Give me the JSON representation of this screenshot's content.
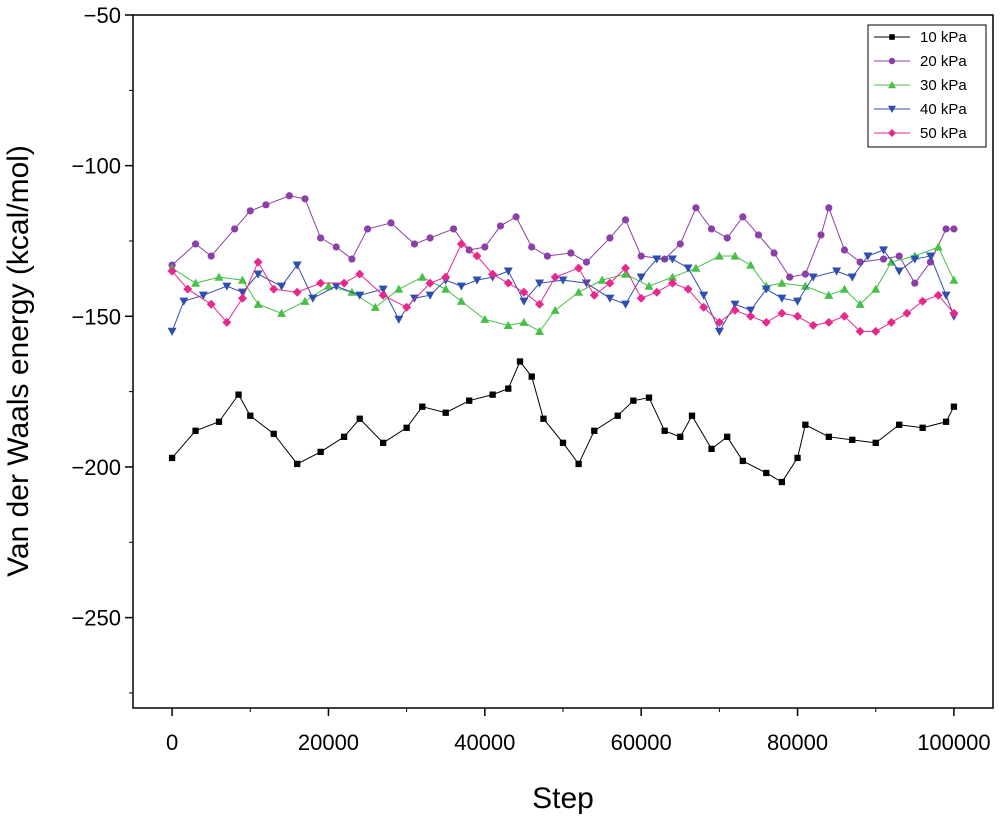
{
  "chart_data": {
    "type": "line",
    "title": "",
    "xlabel": "Step",
    "ylabel": "Van der Waals energy (kcal/mol)",
    "xlim": [
      -5000,
      105000
    ],
    "ylim": [
      -280,
      -50
    ],
    "xticks": [
      0,
      20000,
      40000,
      60000,
      80000,
      100000
    ],
    "xtick_labels": [
      "0",
      "20000",
      "40000",
      "60000",
      "80000",
      "100000"
    ],
    "yticks": [
      -50,
      -100,
      -150,
      -200,
      -250
    ],
    "ytick_labels": [
      "−50",
      "−100",
      "−150",
      "−200",
      "−250"
    ],
    "grid": false,
    "legend_position": "top-right",
    "series": [
      {
        "name": "10 kPa",
        "marker": "square",
        "color": "#000000",
        "points": [
          [
            0,
            -197
          ],
          [
            3000,
            -188
          ],
          [
            6000,
            -185
          ],
          [
            8500,
            -176
          ],
          [
            10000,
            -183
          ],
          [
            13000,
            -189
          ],
          [
            16000,
            -199
          ],
          [
            19000,
            -195
          ],
          [
            22000,
            -190
          ],
          [
            24000,
            -184
          ],
          [
            27000,
            -192
          ],
          [
            30000,
            -187
          ],
          [
            32000,
            -180
          ],
          [
            35000,
            -182
          ],
          [
            38000,
            -178
          ],
          [
            41000,
            -176
          ],
          [
            43000,
            -174
          ],
          [
            44500,
            -165
          ],
          [
            46000,
            -170
          ],
          [
            47500,
            -184
          ],
          [
            50000,
            -192
          ],
          [
            52000,
            -199
          ],
          [
            54000,
            -188
          ],
          [
            57000,
            -183
          ],
          [
            59000,
            -178
          ],
          [
            61000,
            -177
          ],
          [
            63000,
            -188
          ],
          [
            65000,
            -190
          ],
          [
            66500,
            -183
          ],
          [
            69000,
            -194
          ],
          [
            71000,
            -190
          ],
          [
            73000,
            -198
          ],
          [
            76000,
            -202
          ],
          [
            78000,
            -205
          ],
          [
            80000,
            -197
          ],
          [
            81000,
            -186
          ],
          [
            84000,
            -190
          ],
          [
            87000,
            -191
          ],
          [
            90000,
            -192
          ],
          [
            93000,
            -186
          ],
          [
            96000,
            -187
          ],
          [
            99000,
            -185
          ],
          [
            100000,
            -180
          ]
        ]
      },
      {
        "name": "20 kPa",
        "marker": "circle",
        "color": "#8b3fa8",
        "points": [
          [
            0,
            -133
          ],
          [
            3000,
            -126
          ],
          [
            5000,
            -130
          ],
          [
            8000,
            -121
          ],
          [
            10000,
            -115
          ],
          [
            12000,
            -113
          ],
          [
            15000,
            -110
          ],
          [
            17000,
            -111
          ],
          [
            19000,
            -124
          ],
          [
            21000,
            -127
          ],
          [
            23000,
            -131
          ],
          [
            25000,
            -121
          ],
          [
            28000,
            -119
          ],
          [
            31000,
            -126
          ],
          [
            33000,
            -124
          ],
          [
            36000,
            -121
          ],
          [
            38000,
            -128
          ],
          [
            40000,
            -127
          ],
          [
            42000,
            -120
          ],
          [
            44000,
            -117
          ],
          [
            46000,
            -127
          ],
          [
            48000,
            -130
          ],
          [
            51000,
            -129
          ],
          [
            53000,
            -132
          ],
          [
            56000,
            -124
          ],
          [
            58000,
            -118
          ],
          [
            60000,
            -130
          ],
          [
            63000,
            -131
          ],
          [
            65000,
            -126
          ],
          [
            67000,
            -114
          ],
          [
            69000,
            -121
          ],
          [
            71000,
            -124
          ],
          [
            73000,
            -117
          ],
          [
            75000,
            -123
          ],
          [
            77000,
            -129
          ],
          [
            79000,
            -137
          ],
          [
            81000,
            -136
          ],
          [
            83000,
            -123
          ],
          [
            84000,
            -114
          ],
          [
            86000,
            -128
          ],
          [
            88000,
            -132
          ],
          [
            91000,
            -131
          ],
          [
            93000,
            -130
          ],
          [
            95000,
            -139
          ],
          [
            97000,
            -132
          ],
          [
            99000,
            -121
          ],
          [
            100000,
            -121
          ]
        ]
      },
      {
        "name": "30 kPa",
        "marker": "triangle-up",
        "color": "#48c048",
        "points": [
          [
            0,
            -134
          ],
          [
            3000,
            -139
          ],
          [
            6000,
            -137
          ],
          [
            9000,
            -138
          ],
          [
            11000,
            -146
          ],
          [
            14000,
            -149
          ],
          [
            17000,
            -145
          ],
          [
            20000,
            -140
          ],
          [
            23000,
            -142
          ],
          [
            26000,
            -147
          ],
          [
            29000,
            -141
          ],
          [
            32000,
            -137
          ],
          [
            35000,
            -141
          ],
          [
            37000,
            -145
          ],
          [
            40000,
            -151
          ],
          [
            43000,
            -153
          ],
          [
            45000,
            -152
          ],
          [
            47000,
            -155
          ],
          [
            49000,
            -148
          ],
          [
            52000,
            -142
          ],
          [
            55000,
            -138
          ],
          [
            58000,
            -136
          ],
          [
            61000,
            -140
          ],
          [
            64000,
            -137
          ],
          [
            67000,
            -134
          ],
          [
            70000,
            -130
          ],
          [
            72000,
            -130
          ],
          [
            74000,
            -133
          ],
          [
            76000,
            -140
          ],
          [
            78000,
            -139
          ],
          [
            81000,
            -140
          ],
          [
            84000,
            -143
          ],
          [
            86000,
            -141
          ],
          [
            88000,
            -146
          ],
          [
            90000,
            -141
          ],
          [
            92000,
            -132
          ],
          [
            95000,
            -130
          ],
          [
            98000,
            -127
          ],
          [
            100000,
            -138
          ]
        ]
      },
      {
        "name": "40 kPa",
        "marker": "triangle-down",
        "color": "#2f4fb0",
        "points": [
          [
            0,
            -155
          ],
          [
            1500,
            -145
          ],
          [
            4000,
            -143
          ],
          [
            7000,
            -140
          ],
          [
            9000,
            -142
          ],
          [
            11000,
            -136
          ],
          [
            14000,
            -140
          ],
          [
            16000,
            -133
          ],
          [
            18000,
            -144
          ],
          [
            21000,
            -140
          ],
          [
            24000,
            -143
          ],
          [
            27000,
            -141
          ],
          [
            29000,
            -151
          ],
          [
            31000,
            -144
          ],
          [
            33000,
            -143
          ],
          [
            35000,
            -138
          ],
          [
            37000,
            -140
          ],
          [
            39000,
            -138
          ],
          [
            41000,
            -137
          ],
          [
            43000,
            -135
          ],
          [
            45000,
            -145
          ],
          [
            47000,
            -139
          ],
          [
            50000,
            -138
          ],
          [
            53000,
            -139
          ],
          [
            56000,
            -144
          ],
          [
            58000,
            -146
          ],
          [
            60000,
            -137
          ],
          [
            62000,
            -131
          ],
          [
            64000,
            -131
          ],
          [
            66000,
            -134
          ],
          [
            68000,
            -143
          ],
          [
            70000,
            -155
          ],
          [
            72000,
            -146
          ],
          [
            74000,
            -148
          ],
          [
            76000,
            -141
          ],
          [
            78000,
            -144
          ],
          [
            80000,
            -145
          ],
          [
            82000,
            -137
          ],
          [
            85000,
            -135
          ],
          [
            87000,
            -137
          ],
          [
            89000,
            -130
          ],
          [
            91000,
            -128
          ],
          [
            93000,
            -135
          ],
          [
            95000,
            -131
          ],
          [
            97000,
            -130
          ],
          [
            99000,
            -143
          ],
          [
            100000,
            -150
          ]
        ]
      },
      {
        "name": "50 kPa",
        "marker": "diamond",
        "color": "#e8288c",
        "points": [
          [
            0,
            -135
          ],
          [
            2000,
            -141
          ],
          [
            5000,
            -146
          ],
          [
            7000,
            -152
          ],
          [
            9000,
            -144
          ],
          [
            11000,
            -132
          ],
          [
            13000,
            -141
          ],
          [
            16000,
            -142
          ],
          [
            19000,
            -139
          ],
          [
            22000,
            -139
          ],
          [
            24000,
            -136
          ],
          [
            27000,
            -143
          ],
          [
            30000,
            -147
          ],
          [
            33000,
            -139
          ],
          [
            35000,
            -137
          ],
          [
            37000,
            -126
          ],
          [
            39000,
            -130
          ],
          [
            41000,
            -136
          ],
          [
            43000,
            -139
          ],
          [
            45000,
            -142
          ],
          [
            47000,
            -146
          ],
          [
            49000,
            -137
          ],
          [
            52000,
            -134
          ],
          [
            54000,
            -143
          ],
          [
            56000,
            -139
          ],
          [
            58000,
            -134
          ],
          [
            60000,
            -144
          ],
          [
            62000,
            -142
          ],
          [
            64000,
            -139
          ],
          [
            66000,
            -141
          ],
          [
            68000,
            -147
          ],
          [
            70000,
            -152
          ],
          [
            72000,
            -148
          ],
          [
            74000,
            -150
          ],
          [
            76000,
            -152
          ],
          [
            78000,
            -149
          ],
          [
            80000,
            -150
          ],
          [
            82000,
            -153
          ],
          [
            84000,
            -152
          ],
          [
            86000,
            -150
          ],
          [
            88000,
            -155
          ],
          [
            90000,
            -155
          ],
          [
            92000,
            -152
          ],
          [
            94000,
            -149
          ],
          [
            96000,
            -145
          ],
          [
            98000,
            -143
          ],
          [
            100000,
            -149
          ]
        ]
      }
    ]
  }
}
